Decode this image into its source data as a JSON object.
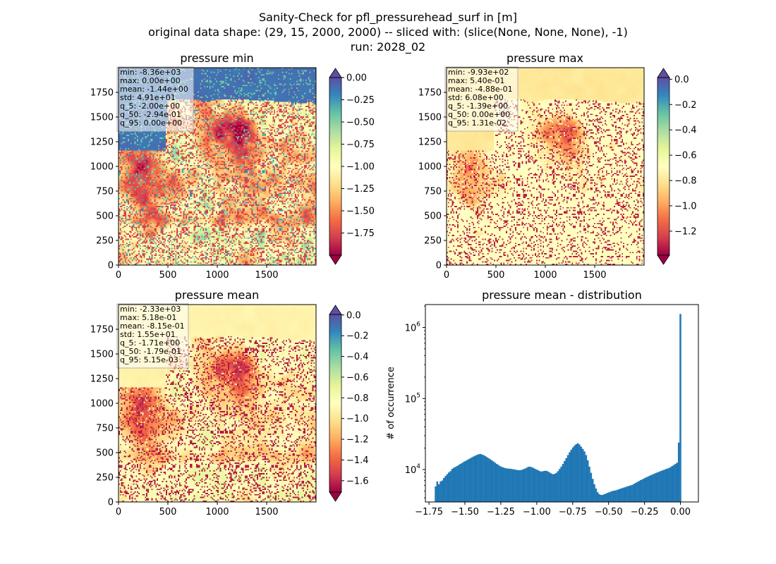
{
  "figure": {
    "title_lines": [
      "Sanity-Check for pfl_pressurehead_surf in [m]",
      "original data shape: (29, 15, 2000, 2000) -- sliced with: (slice(None, None, None), -1)",
      "run: 2028_02"
    ]
  },
  "colormap": {
    "name": "Spectral",
    "stops": [
      "#9e0142",
      "#d53e4f",
      "#f46d43",
      "#fdae61",
      "#fee08b",
      "#ffffbf",
      "#e6f598",
      "#abdda4",
      "#66c2a5",
      "#3288bd",
      "#5e4fa2"
    ]
  },
  "chart_data": [
    {
      "type": "heatmap",
      "title": "pressure min",
      "xlim": [
        0,
        2000
      ],
      "ylim": [
        0,
        2000
      ],
      "xticks": [
        0,
        500,
        1000,
        1500
      ],
      "yticks": [
        0,
        250,
        500,
        750,
        1000,
        1250,
        1500,
        1750
      ],
      "stats": [
        "min: -8.36e+03",
        "max: 0.00e+00",
        "mean: -1.44e+00",
        "std: 4.91e+01",
        "q_5: -2.00e+00",
        "q_50: -2.94e-01",
        "q_95: 0.00e+00"
      ],
      "colorbar": {
        "range": [
          -2.0,
          0.0
        ],
        "ticks": [
          0.0,
          -0.25,
          -0.5,
          -0.75,
          -1.0,
          -1.25,
          -1.5,
          -1.75
        ],
        "tick_labels": [
          "0.00",
          "−0.25",
          "−0.50",
          "−0.75",
          "−1.00",
          "−1.25",
          "−1.50",
          "−1.75"
        ],
        "extend": "both"
      }
    },
    {
      "type": "heatmap",
      "title": "pressure max",
      "xlim": [
        0,
        2000
      ],
      "ylim": [
        0,
        2000
      ],
      "xticks": [
        0,
        500,
        1000,
        1500
      ],
      "yticks": [
        0,
        250,
        500,
        750,
        1000,
        1250,
        1500,
        1750
      ],
      "stats": [
        "min: -9.93e+02",
        "max: 5.40e-01",
        "mean: -4.88e-01",
        "std: 6.08e+00",
        "q_5: -1.39e+00",
        "q_50: 0.00e+00",
        "q_95: 1.31e-02"
      ],
      "colorbar": {
        "range": [
          -1.39,
          0.0131
        ],
        "ticks": [
          0.0,
          -0.2,
          -0.4,
          -0.6,
          -0.8,
          -1.0,
          -1.2
        ],
        "tick_labels": [
          "0.0",
          "−0.2",
          "−0.4",
          "−0.6",
          "−0.8",
          "−1.0",
          "−1.2"
        ],
        "extend": "both"
      }
    },
    {
      "type": "heatmap",
      "title": "pressure mean",
      "xlim": [
        0,
        2000
      ],
      "ylim": [
        0,
        2000
      ],
      "xticks": [
        0,
        500,
        1000,
        1500
      ],
      "yticks": [
        0,
        250,
        500,
        750,
        1000,
        1250,
        1500,
        1750
      ],
      "stats": [
        "min: -2.33e+03",
        "max: 5.18e-01",
        "mean: -8.15e-01",
        "std: 1.55e+01",
        "q_5: -1.71e+00",
        "q_50: -1.79e-01",
        "q_95: 5.15e-03"
      ],
      "colorbar": {
        "range": [
          -1.71,
          0.00515
        ],
        "ticks": [
          0.0,
          -0.2,
          -0.4,
          -0.6,
          -0.8,
          -1.0,
          -1.2,
          -1.4,
          -1.6
        ],
        "tick_labels": [
          "0.0",
          "−0.2",
          "−0.4",
          "−0.6",
          "−0.8",
          "−1.0",
          "−1.2",
          "−1.4",
          "−1.6"
        ],
        "extend": "both"
      }
    },
    {
      "type": "bar",
      "title": "pressure mean - distribution",
      "ylabel": "# of occurrence",
      "xlabel": "",
      "yscale": "log",
      "xlim": [
        -1.775,
        0.125
      ],
      "ylim": [
        3500,
        2100000
      ],
      "xticks": [
        -1.75,
        -1.5,
        -1.25,
        -1.0,
        -0.75,
        -0.5,
        -0.25,
        0.0
      ],
      "xtick_labels": [
        "−1.75",
        "−1.50",
        "−1.25",
        "−1.00",
        "−0.75",
        "−0.50",
        "−0.25",
        "0.00"
      ],
      "yticks": [
        10000,
        100000,
        1000000
      ],
      "ytick_labels": [
        [
          "10",
          "4"
        ],
        [
          "10",
          "5"
        ],
        [
          "10",
          "6"
        ]
      ],
      "bar_color": "#1f77b4",
      "bin_range": [
        -1.71,
        0.00515
      ],
      "values": [
        5800,
        6800,
        6200,
        6800,
        7000,
        7600,
        8100,
        8600,
        9100,
        9500,
        10200,
        10600,
        10900,
        11200,
        11600,
        12000,
        12400,
        12800,
        13200,
        13600,
        14000,
        14400,
        14900,
        15300,
        15700,
        16100,
        16400,
        16600,
        16300,
        16000,
        15500,
        15000,
        14500,
        14000,
        13500,
        13000,
        12500,
        12000,
        11600,
        11200,
        10900,
        10700,
        10500,
        10400,
        10300,
        10300,
        10200,
        10100,
        10000,
        9900,
        9800,
        9800,
        9900,
        10100,
        10300,
        10600,
        10900,
        11000,
        10800,
        10600,
        10300,
        10000,
        9800,
        9500,
        9400,
        9500,
        9600,
        9600,
        9400,
        9100,
        8800,
        8600,
        8700,
        9000,
        9500,
        10200,
        11000,
        12000,
        13200,
        14500,
        16000,
        17500,
        19000,
        20500,
        21800,
        22800,
        23500,
        22500,
        21000,
        19500,
        18000,
        16000,
        13500,
        11000,
        9000,
        7400,
        6200,
        5400,
        4800,
        4500,
        4400,
        4400,
        4500,
        4600,
        4700,
        4800,
        4900,
        5000,
        5050,
        5100,
        5200,
        5300,
        5400,
        5500,
        5600,
        5700,
        5800,
        5900,
        6000,
        6100,
        6300,
        6500,
        6700,
        6900,
        7100,
        7300,
        7500,
        7700,
        7900,
        8100,
        8300,
        8500,
        8700,
        8900,
        9100,
        9300,
        9500,
        9700,
        9900,
        10100,
        10300,
        10500,
        10800,
        11200,
        11600,
        12000,
        12500,
        24000,
        1550000
      ]
    }
  ]
}
